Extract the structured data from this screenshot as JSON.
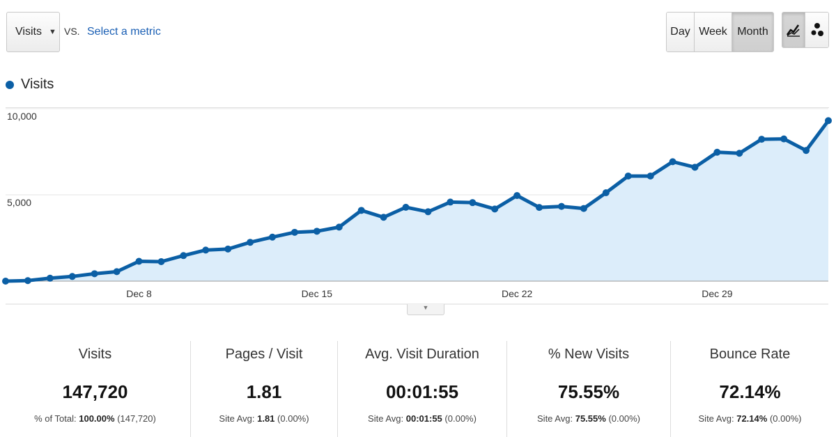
{
  "toolbar": {
    "metric_label": "Visits",
    "vs_label": "VS.",
    "select_metric_label": "Select a metric",
    "range_buttons": {
      "day": "Day",
      "week": "Week",
      "month": "Month"
    },
    "active_range": "Month",
    "view_icons": {
      "line": "line-chart-icon",
      "motion": "motion-chart-icon"
    },
    "active_view": "line"
  },
  "legend": {
    "label": "Visits",
    "color": "#0b5fa5"
  },
  "chart_data": {
    "type": "area",
    "series": [
      {
        "name": "Visits",
        "color": "#0b5fa5",
        "fill": "#dcedfa",
        "values": [
          0,
          30,
          170,
          270,
          430,
          550,
          1150,
          1130,
          1480,
          1800,
          1860,
          2250,
          2550,
          2830,
          2890,
          3130,
          4100,
          3700,
          4280,
          4020,
          4580,
          4550,
          4180,
          4960,
          4270,
          4330,
          4210,
          5120,
          6090,
          6090,
          6920,
          6600,
          7470,
          7410,
          8220,
          8240,
          7570,
          9300
        ]
      }
    ],
    "x_tick_labels": [
      "Dec 8",
      "Dec 15",
      "Dec 22",
      "Dec 29"
    ],
    "x_tick_indices": [
      6,
      14,
      23,
      32
    ],
    "y_tick_labels": [
      "10,000",
      "5,000"
    ],
    "y_ticks": [
      10000,
      5000
    ],
    "ylim": [
      0,
      10000
    ],
    "grid": true
  },
  "stats": [
    {
      "title": "Visits",
      "value": "147,720",
      "sub_label": "% of Total:",
      "sub_bold": "100.00%",
      "sub_rest": "(147,720)"
    },
    {
      "title": "Pages / Visit",
      "value": "1.81",
      "sub_label": "Site Avg:",
      "sub_bold": "1.81",
      "sub_rest": "(0.00%)"
    },
    {
      "title": "Avg. Visit Duration",
      "value": "00:01:55",
      "sub_label": "Site Avg:",
      "sub_bold": "00:01:55",
      "sub_rest": "(0.00%)"
    },
    {
      "title": "% New Visits",
      "value": "75.55%",
      "sub_label": "Site Avg:",
      "sub_bold": "75.55%",
      "sub_rest": "(0.00%)"
    },
    {
      "title": "Bounce Rate",
      "value": "72.14%",
      "sub_label": "Site Avg:",
      "sub_bold": "72.14%",
      "sub_rest": "(0.00%)"
    }
  ]
}
